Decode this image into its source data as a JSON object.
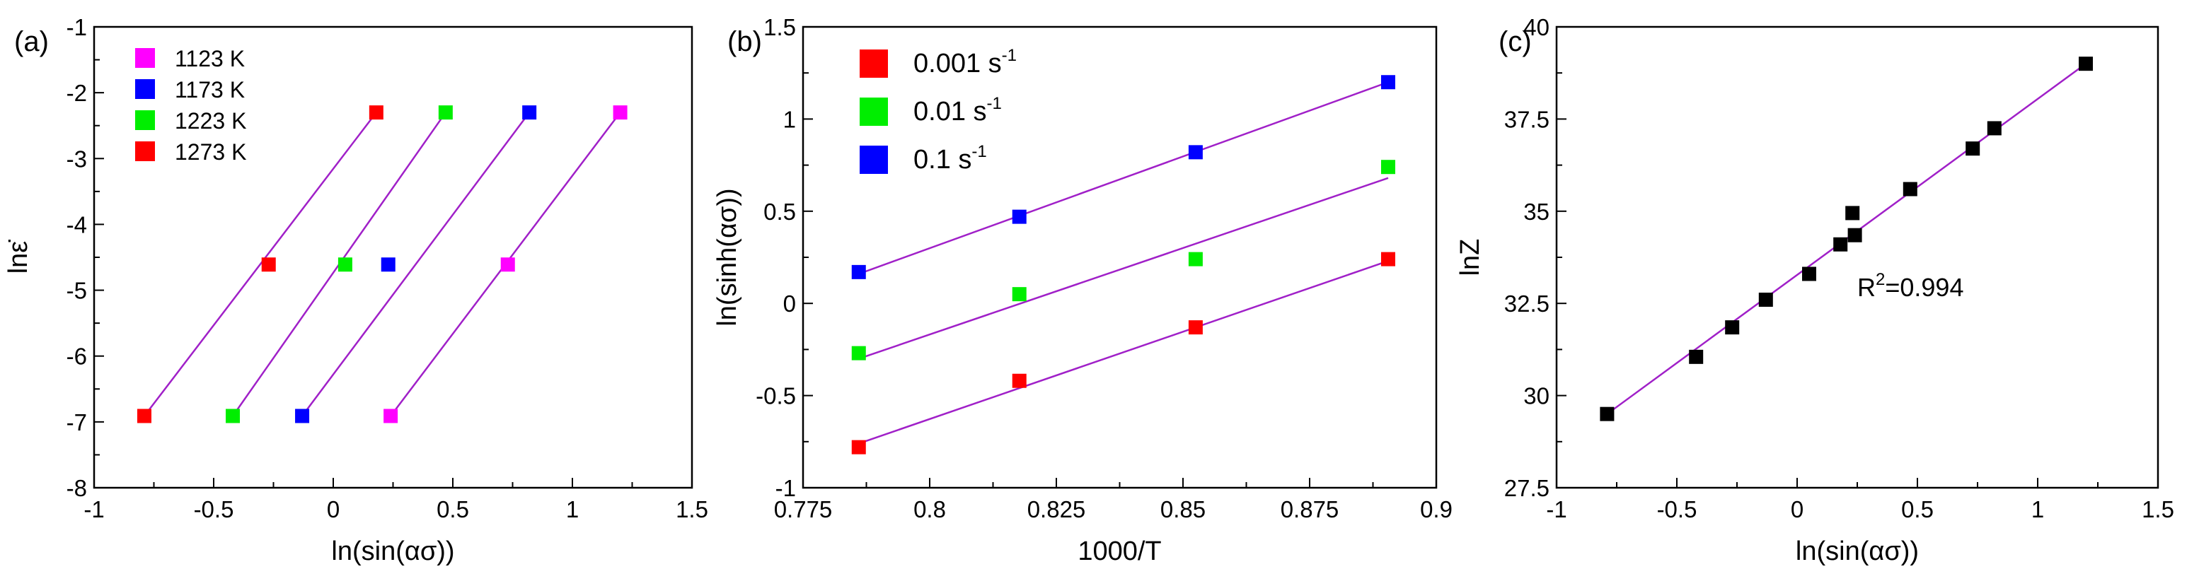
{
  "chart_data": [
    {
      "panel": "(a)",
      "type": "scatter",
      "xlabel": "ln(sin(ασ))",
      "ylabel": "lnε̇",
      "xlim": [
        -1,
        1.5
      ],
      "ylim": [
        -8,
        -1
      ],
      "xticks": [
        -1,
        -0.5,
        0,
        0.5,
        1,
        1.5
      ],
      "xtick_labels": [
        "-1",
        "-0.5",
        "0",
        "0.5",
        "1",
        "1.5"
      ],
      "yticks": [
        -8,
        -7,
        -6,
        -5,
        -4,
        -3,
        -2,
        -1
      ],
      "ytick_labels": [
        "-8",
        "-7",
        "-6",
        "-5",
        "-4",
        "-3",
        "-2",
        "-1"
      ],
      "legend_position": "top-left",
      "fit_line_color": "#a020c8",
      "series": [
        {
          "name": "1123 K",
          "color": "#ff00ff",
          "x": [
            0.24,
            0.73,
            1.2
          ],
          "y": [
            -6.91,
            -4.61,
            -2.3
          ],
          "fit": {
            "x": [
              0.24,
              1.2
            ],
            "y": [
              -6.91,
              -2.3
            ]
          }
        },
        {
          "name": "1173 K",
          "color": "#0000ff",
          "x": [
            -0.13,
            0.23,
            0.82
          ],
          "y": [
            -6.91,
            -4.61,
            -2.3
          ],
          "fit": {
            "x": [
              -0.13,
              0.82
            ],
            "y": [
              -6.91,
              -2.3
            ]
          }
        },
        {
          "name": "1223 K",
          "color": "#00ee00",
          "x": [
            -0.42,
            0.05,
            0.47
          ],
          "y": [
            -6.91,
            -4.61,
            -2.3
          ],
          "fit": {
            "x": [
              -0.42,
              0.47
            ],
            "y": [
              -6.91,
              -2.3
            ]
          }
        },
        {
          "name": "1273 K",
          "color": "#ff0000",
          "x": [
            -0.79,
            -0.27,
            0.18
          ],
          "y": [
            -6.91,
            -4.61,
            -2.3
          ],
          "fit": {
            "x": [
              -0.79,
              0.18
            ],
            "y": [
              -6.91,
              -2.3
            ]
          }
        }
      ]
    },
    {
      "panel": "(b)",
      "type": "scatter",
      "xlabel": "1000/T",
      "ylabel": "ln(sinh(ασ))",
      "xlim": [
        0.775,
        0.9
      ],
      "ylim": [
        -1,
        1.5
      ],
      "xticks": [
        0.775,
        0.8,
        0.825,
        0.85,
        0.875,
        0.9
      ],
      "xtick_labels": [
        "0.775",
        "0.8",
        "0.825",
        "0.85",
        "0.875",
        "0.9"
      ],
      "yticks": [
        -1,
        -0.5,
        0,
        0.5,
        1,
        1.5
      ],
      "ytick_labels": [
        "-1",
        "-0.5",
        "0",
        "0.5",
        "1",
        "1.5"
      ],
      "legend_position": "top-left",
      "fit_line_color": "#a020c8",
      "series": [
        {
          "name": "0.001 s",
          "name_sup": "-1",
          "color": "#ff0000",
          "x": [
            0.786,
            0.8177,
            0.8525,
            0.8905
          ],
          "y": [
            -0.78,
            -0.42,
            -0.13,
            0.24
          ],
          "fit": {
            "x": [
              0.786,
              0.8905
            ],
            "y": [
              -0.76,
              0.23
            ]
          }
        },
        {
          "name": "0.01 s",
          "name_sup": "-1",
          "color": "#00ee00",
          "x": [
            0.786,
            0.8177,
            0.8525,
            0.8905
          ],
          "y": [
            -0.27,
            0.05,
            0.24,
            0.74
          ],
          "fit": {
            "x": [
              0.786,
              0.8905
            ],
            "y": [
              -0.3,
              0.68
            ]
          }
        },
        {
          "name": "0.1 s",
          "name_sup": "-1",
          "color": "#0000ff",
          "x": [
            0.786,
            0.8177,
            0.8525,
            0.8905
          ],
          "y": [
            0.17,
            0.47,
            0.82,
            1.2
          ],
          "fit": {
            "x": [
              0.786,
              0.8905
            ],
            "y": [
              0.16,
              1.2
            ]
          }
        }
      ]
    },
    {
      "panel": "(c)",
      "type": "scatter",
      "xlabel": "ln(sin(ασ))",
      "ylabel": "lnZ",
      "xlim": [
        -1,
        1.5
      ],
      "ylim": [
        27.5,
        40
      ],
      "xticks": [
        -1,
        -0.5,
        0,
        0.5,
        1,
        1.5
      ],
      "xtick_labels": [
        "-1",
        "-0.5",
        "0",
        "0.5",
        "1",
        "1.5"
      ],
      "yticks": [
        27.5,
        30,
        32.5,
        35,
        37.5,
        40
      ],
      "ytick_labels": [
        "27.5",
        "30",
        "32.5",
        "35",
        "37.5",
        "40"
      ],
      "annotation": {
        "text_main": "R",
        "text_sup": "2",
        "text_rest": "=0.994",
        "x": 0.25,
        "y": 32.7
      },
      "fit_line_color": "#a020c8",
      "series": [
        {
          "color": "#000000",
          "x": [
            -0.79,
            -0.42,
            -0.27,
            -0.13,
            0.05,
            0.18,
            0.23,
            0.24,
            0.47,
            0.73,
            0.82,
            1.2
          ],
          "y": [
            29.5,
            31.05,
            31.85,
            32.6,
            33.3,
            34.1,
            34.95,
            34.35,
            35.6,
            36.7,
            37.25,
            39.0
          ],
          "fit": {
            "x": [
              -0.79,
              1.2
            ],
            "y": [
              29.5,
              39.0
            ]
          }
        }
      ]
    }
  ]
}
